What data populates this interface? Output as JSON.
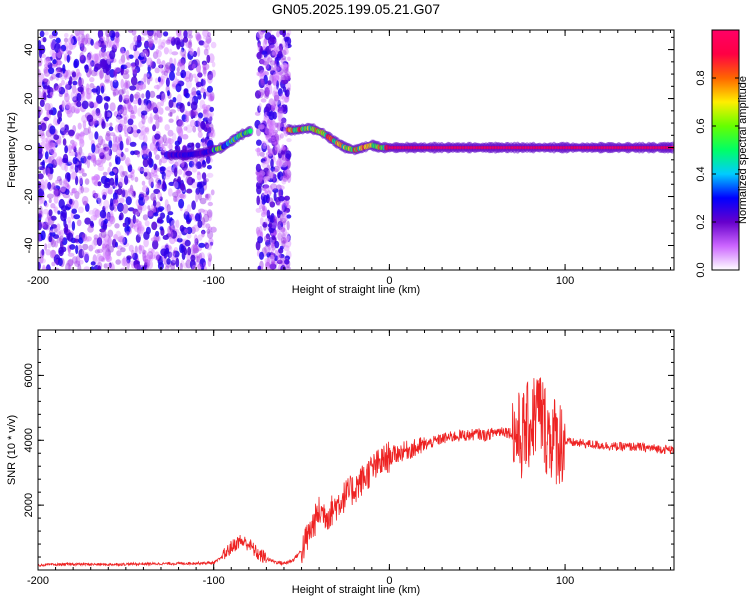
{
  "chart_data": [
    {
      "type": "heatmap",
      "title": "GN05.2025.199.05.21.G07",
      "xlabel": "Height of straight line (km)",
      "ylabel": "Frequency (Hz)",
      "xlim": [
        -200,
        162
      ],
      "ylim": [
        -50,
        48
      ],
      "xticks": [
        -200,
        -100,
        0,
        100
      ],
      "yticks": [
        -40,
        -20,
        0,
        20,
        40
      ],
      "colorbar": {
        "label": "Normalized spectral amplitude",
        "range": [
          0,
          1
        ],
        "ticks": [
          0.0,
          0.2,
          0.4,
          0.6,
          0.8
        ],
        "colors": [
          "#ffffff",
          "#cc66ff",
          "#6600cc",
          "#0000ff",
          "#00ccff",
          "#00ff66",
          "#66ff00",
          "#ffee00",
          "#ff6600",
          "#ff0044",
          "#ff0066"
        ]
      },
      "ridge": {
        "x": [
          -125,
          -115,
          -105,
          -95,
          -85,
          -75,
          -70,
          -62,
          -55,
          -45,
          -38,
          -30,
          -25,
          -20,
          -15,
          -10,
          -5,
          0,
          20,
          60,
          100,
          140,
          160
        ],
        "y": [
          -3,
          -3,
          -2,
          0,
          5,
          8,
          9,
          8,
          7,
          8,
          6,
          2,
          0,
          -1,
          0,
          1,
          0,
          0,
          0,
          0,
          0,
          0,
          0
        ]
      },
      "noise_region_x": [
        -200,
        -100
      ],
      "noise_band_x": [
        -75,
        -57
      ],
      "grid": false
    },
    {
      "type": "line",
      "title": "",
      "xlabel": "Height of straight line (km)",
      "ylabel": "SNR (10 * v/v)",
      "xlim": [
        -200,
        162
      ],
      "ylim": [
        0,
        7400
      ],
      "xticks": [
        -200,
        -100,
        0,
        100
      ],
      "yticks": [
        2000,
        4000,
        6000
      ],
      "series": [
        {
          "color": "#ee2222",
          "x": [
            -200,
            -180,
            -160,
            -140,
            -120,
            -100,
            -95,
            -90,
            -85,
            -80,
            -75,
            -70,
            -65,
            -60,
            -55,
            -50,
            -45,
            -40,
            -35,
            -30,
            -25,
            -20,
            -15,
            -10,
            -5,
            0,
            5,
            10,
            15,
            20,
            25,
            30,
            35,
            40,
            45,
            50,
            55,
            60,
            65,
            70,
            75,
            80,
            85,
            90,
            95,
            100,
            110,
            120,
            130,
            140,
            150,
            162
          ],
          "y": [
            150,
            180,
            170,
            190,
            200,
            220,
            400,
            700,
            900,
            800,
            500,
            350,
            250,
            200,
            300,
            600,
            1200,
            1800,
            1700,
            2000,
            2300,
            2500,
            2800,
            3100,
            3300,
            3500,
            3600,
            3700,
            3750,
            3850,
            3950,
            4050,
            4100,
            4150,
            4150,
            4200,
            4150,
            4250,
            4300,
            4200,
            4100,
            4500,
            5000,
            4200,
            4000,
            3950,
            3900,
            3850,
            3800,
            3800,
            3750,
            3700
          ]
        }
      ],
      "grid": false
    }
  ]
}
